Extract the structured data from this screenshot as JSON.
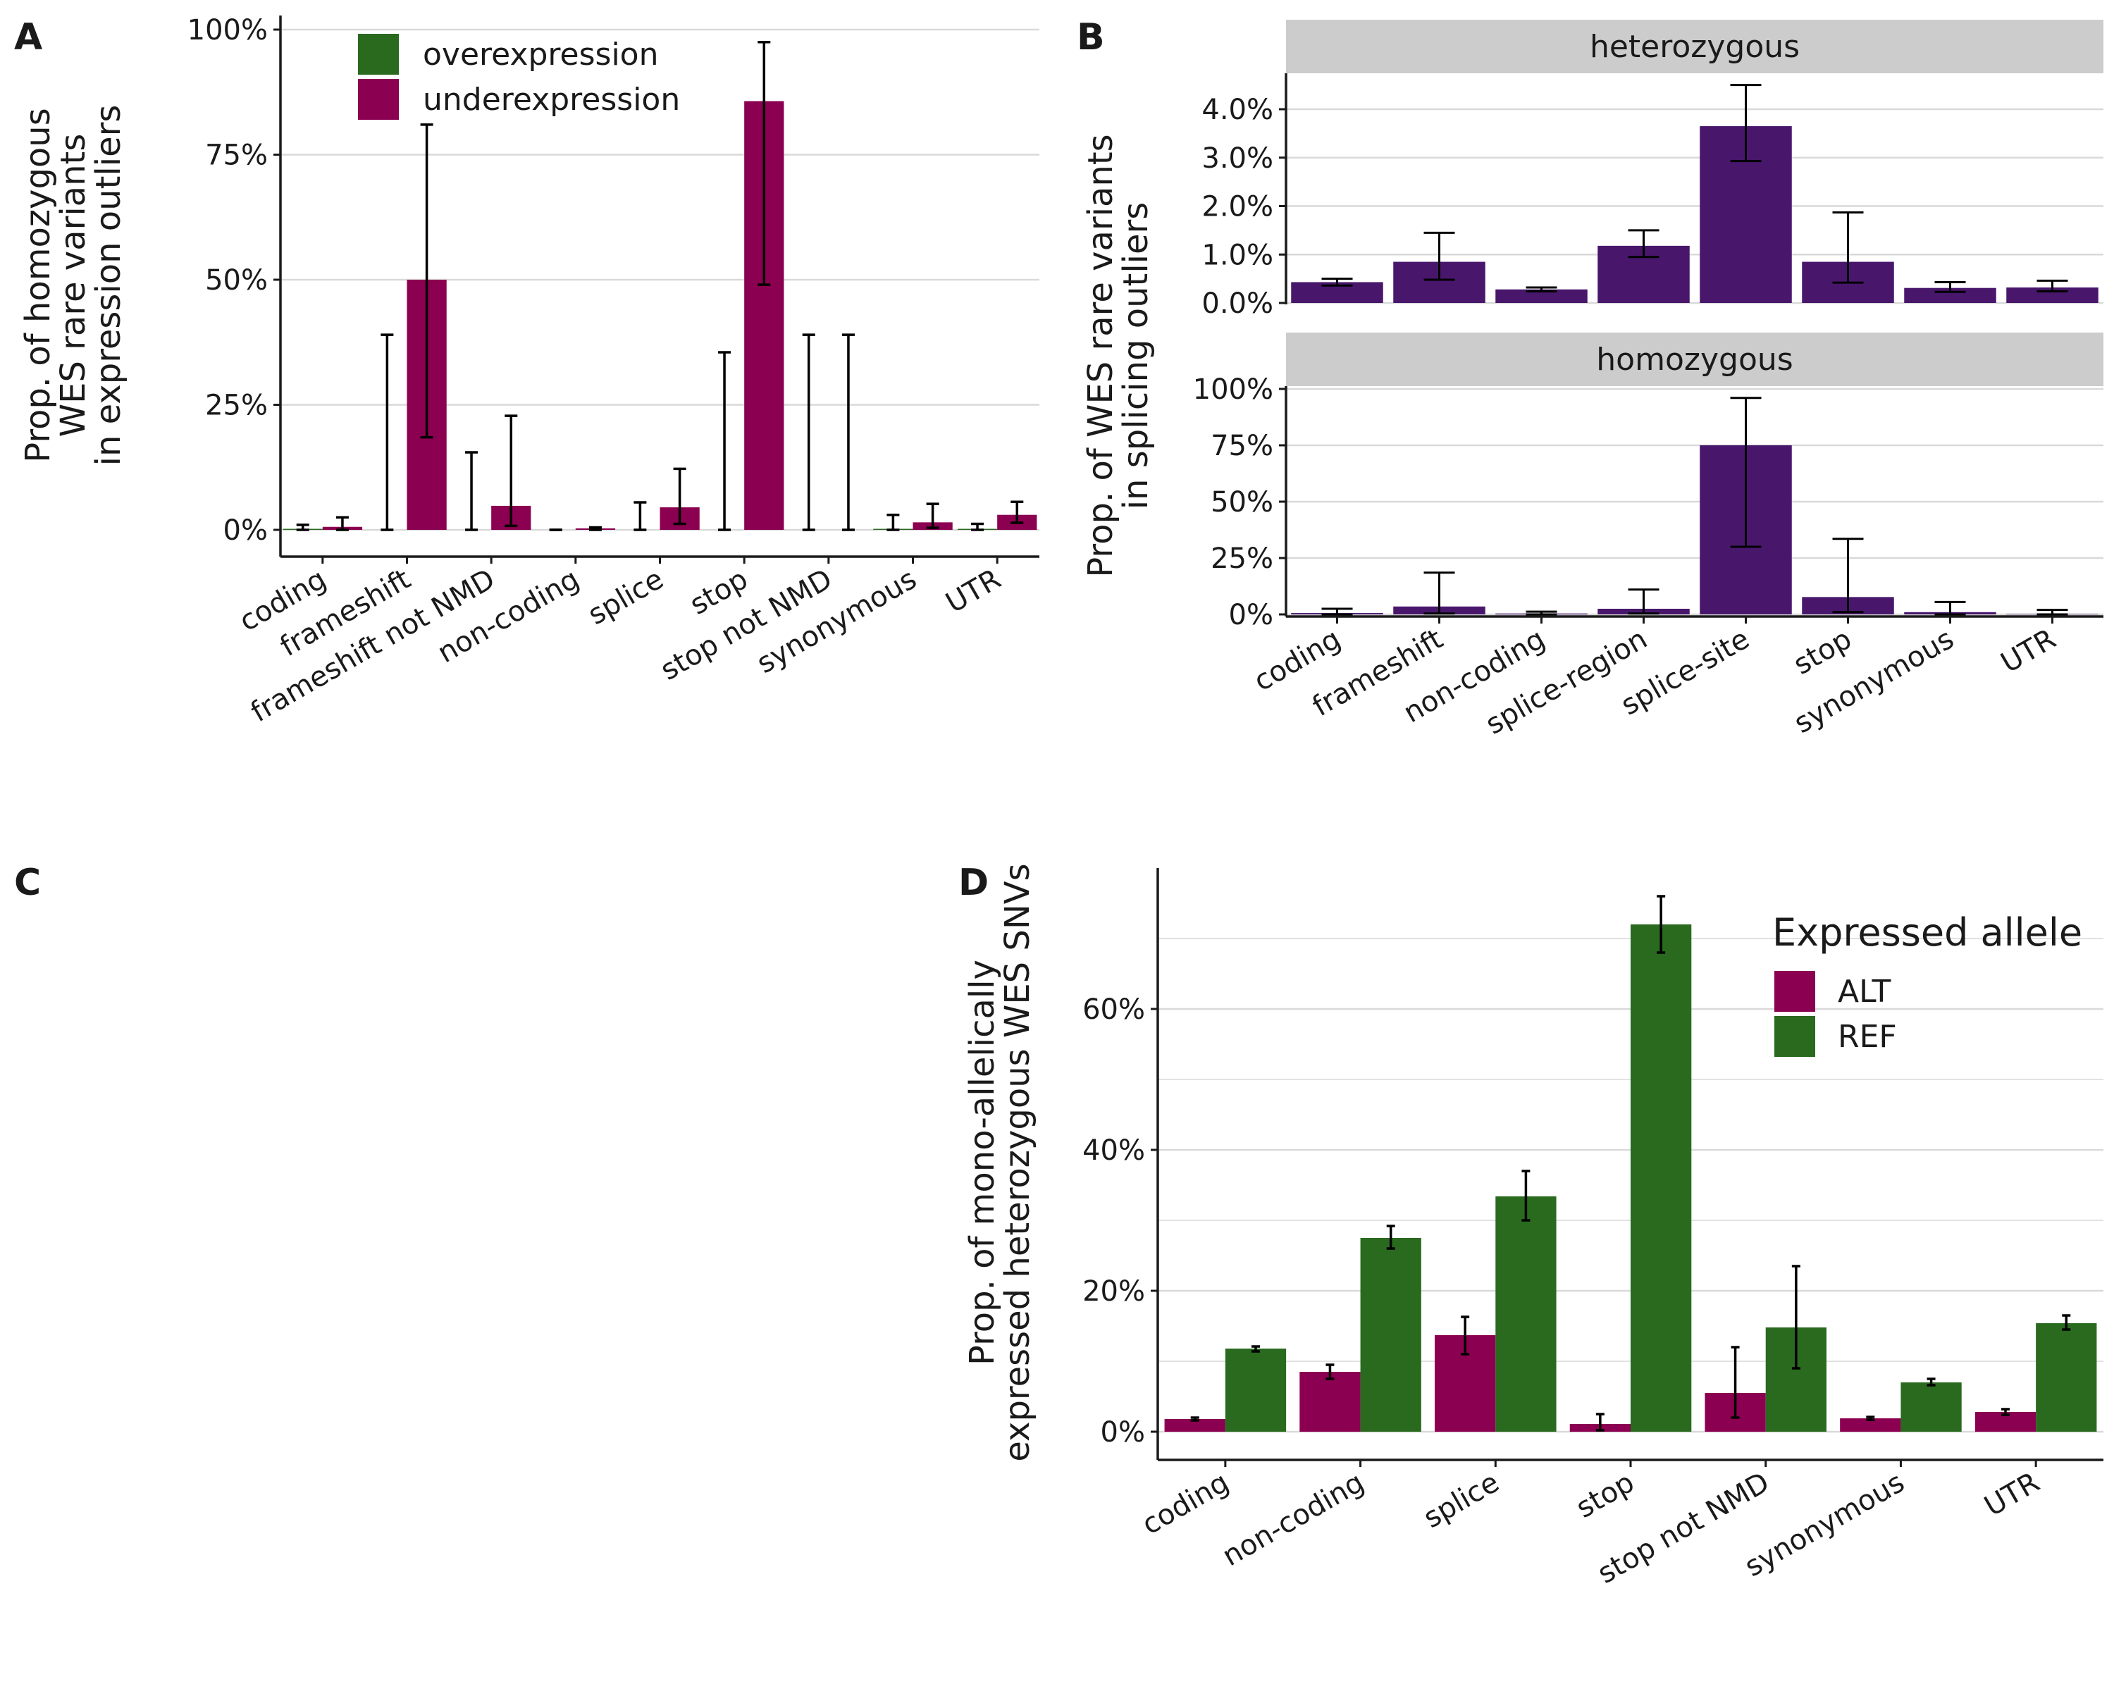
{
  "colors": {
    "under": "#8b0050",
    "over": "#296a1f",
    "purple": "#48176c",
    "alt": "#8b0050",
    "ref": "#296a1f",
    "strip": "#cccccc",
    "grid": "#d9d9d9",
    "axis": "#1a1a1a"
  },
  "chart_data": [
    {
      "type": "bar",
      "panel": "A",
      "ylabel_lines": [
        "Prop. of homozygous",
        "WES rare variants",
        "in expression outliers"
      ],
      "ylim": [
        0,
        1
      ],
      "yticks": [
        0,
        0.25,
        0.5,
        0.75,
        1.0
      ],
      "ytick_labels": [
        "0%",
        "25%",
        "50%",
        "75%",
        "100%"
      ],
      "categories": [
        "coding",
        "frameshift",
        "frameshift not NMD",
        "non-coding",
        "splice",
        "stop",
        "stop not NMD",
        "synonymous",
        "UTR"
      ],
      "legend": {
        "position": "top-left",
        "entries": [
          "overexpression",
          "underexpression"
        ]
      },
      "series": [
        {
          "name": "overexpression",
          "values": [
            0.002,
            0.0,
            0.0,
            0.0,
            0.0,
            0.0,
            0.0,
            0.002,
            0.002
          ],
          "err_low": [
            0.0,
            0.0,
            0.0,
            0.0,
            0.0,
            0.0,
            0.0,
            0.0,
            0.0
          ],
          "err_high": [
            0.01,
            0.39,
            0.155,
            0.0,
            0.055,
            0.355,
            0.39,
            0.03,
            0.012
          ]
        },
        {
          "name": "underexpression",
          "values": [
            0.006,
            0.5,
            0.048,
            0.003,
            0.045,
            0.857,
            0.0,
            0.015,
            0.03
          ],
          "err_low": [
            0.0,
            0.185,
            0.008,
            0.0,
            0.012,
            0.49,
            0.0,
            0.004,
            0.014
          ],
          "err_high": [
            0.025,
            0.81,
            0.228,
            0.005,
            0.122,
            0.975,
            0.39,
            0.052,
            0.056
          ]
        }
      ]
    },
    {
      "type": "bar",
      "panel": "B",
      "ylabel_lines": [
        "Prop. of WES rare variants",
        "in splicing outliers"
      ],
      "categories": [
        "coding",
        "frameshift",
        "non-coding",
        "splice-region",
        "splice-site",
        "stop",
        "synonymous",
        "UTR"
      ],
      "facets": [
        {
          "name": "heterozygous",
          "ylim": [
            0,
            0.047
          ],
          "yticks": [
            0,
            0.01,
            0.02,
            0.03,
            0.04
          ],
          "ytick_labels": [
            "0.0%",
            "1.0%",
            "2.0%",
            "3.0%",
            "4.0%"
          ],
          "values": [
            0.0043,
            0.0085,
            0.0028,
            0.0118,
            0.0365,
            0.0085,
            0.0031,
            0.0032
          ],
          "err_low": [
            0.0036,
            0.0048,
            0.0024,
            0.0095,
            0.0293,
            0.0042,
            0.0023,
            0.0024
          ],
          "err_high": [
            0.005,
            0.0145,
            0.0032,
            0.015,
            0.045,
            0.0187,
            0.0043,
            0.0046
          ]
        },
        {
          "name": "homozygous",
          "ylim": [
            0,
            1.0
          ],
          "yticks": [
            0,
            0.25,
            0.5,
            0.75,
            1.0
          ],
          "ytick_labels": [
            "0%",
            "25%",
            "50%",
            "75%",
            "100%"
          ],
          "values": [
            0.006,
            0.035,
            0.004,
            0.025,
            0.75,
            0.077,
            0.01,
            0.002
          ],
          "err_low": [
            0.0,
            0.004,
            0.0,
            0.004,
            0.3,
            0.01,
            0.0,
            0.0
          ],
          "err_high": [
            0.025,
            0.185,
            0.012,
            0.11,
            0.96,
            0.335,
            0.055,
            0.02
          ]
        }
      ]
    },
    {
      "type": "bar",
      "panel": "D",
      "ylabel_lines": [
        "Prop. of mono-allelically",
        "expressed heterozygous WES SNVs"
      ],
      "ylim": [
        0,
        0.75
      ],
      "yticks": [
        0,
        0.2,
        0.4,
        0.6
      ],
      "ytick_labels": [
        "0%",
        "20%",
        "40%",
        "60%"
      ],
      "categories": [
        "coding",
        "non-coding",
        "splice",
        "stop",
        "stop not NMD",
        "synonymous",
        "UTR"
      ],
      "legend": {
        "title": "Expressed allele",
        "position": "top-right",
        "entries": [
          "ALT",
          "REF"
        ]
      },
      "series": [
        {
          "name": "ALT",
          "values": [
            0.018,
            0.085,
            0.137,
            0.011,
            0.055,
            0.019,
            0.028
          ],
          "err_low": [
            0.016,
            0.075,
            0.11,
            0.002,
            0.02,
            0.017,
            0.024
          ],
          "err_high": [
            0.02,
            0.095,
            0.163,
            0.025,
            0.12,
            0.021,
            0.032
          ]
        },
        {
          "name": "REF",
          "values": [
            0.118,
            0.275,
            0.334,
            0.72,
            0.148,
            0.07,
            0.154
          ],
          "err_low": [
            0.114,
            0.26,
            0.3,
            0.68,
            0.09,
            0.066,
            0.145
          ],
          "err_high": [
            0.121,
            0.292,
            0.37,
            0.76,
            0.235,
            0.075,
            0.165
          ]
        }
      ]
    }
  ],
  "panel_tags": {
    "a": "A",
    "b": "B",
    "c": "C",
    "d": "D"
  }
}
